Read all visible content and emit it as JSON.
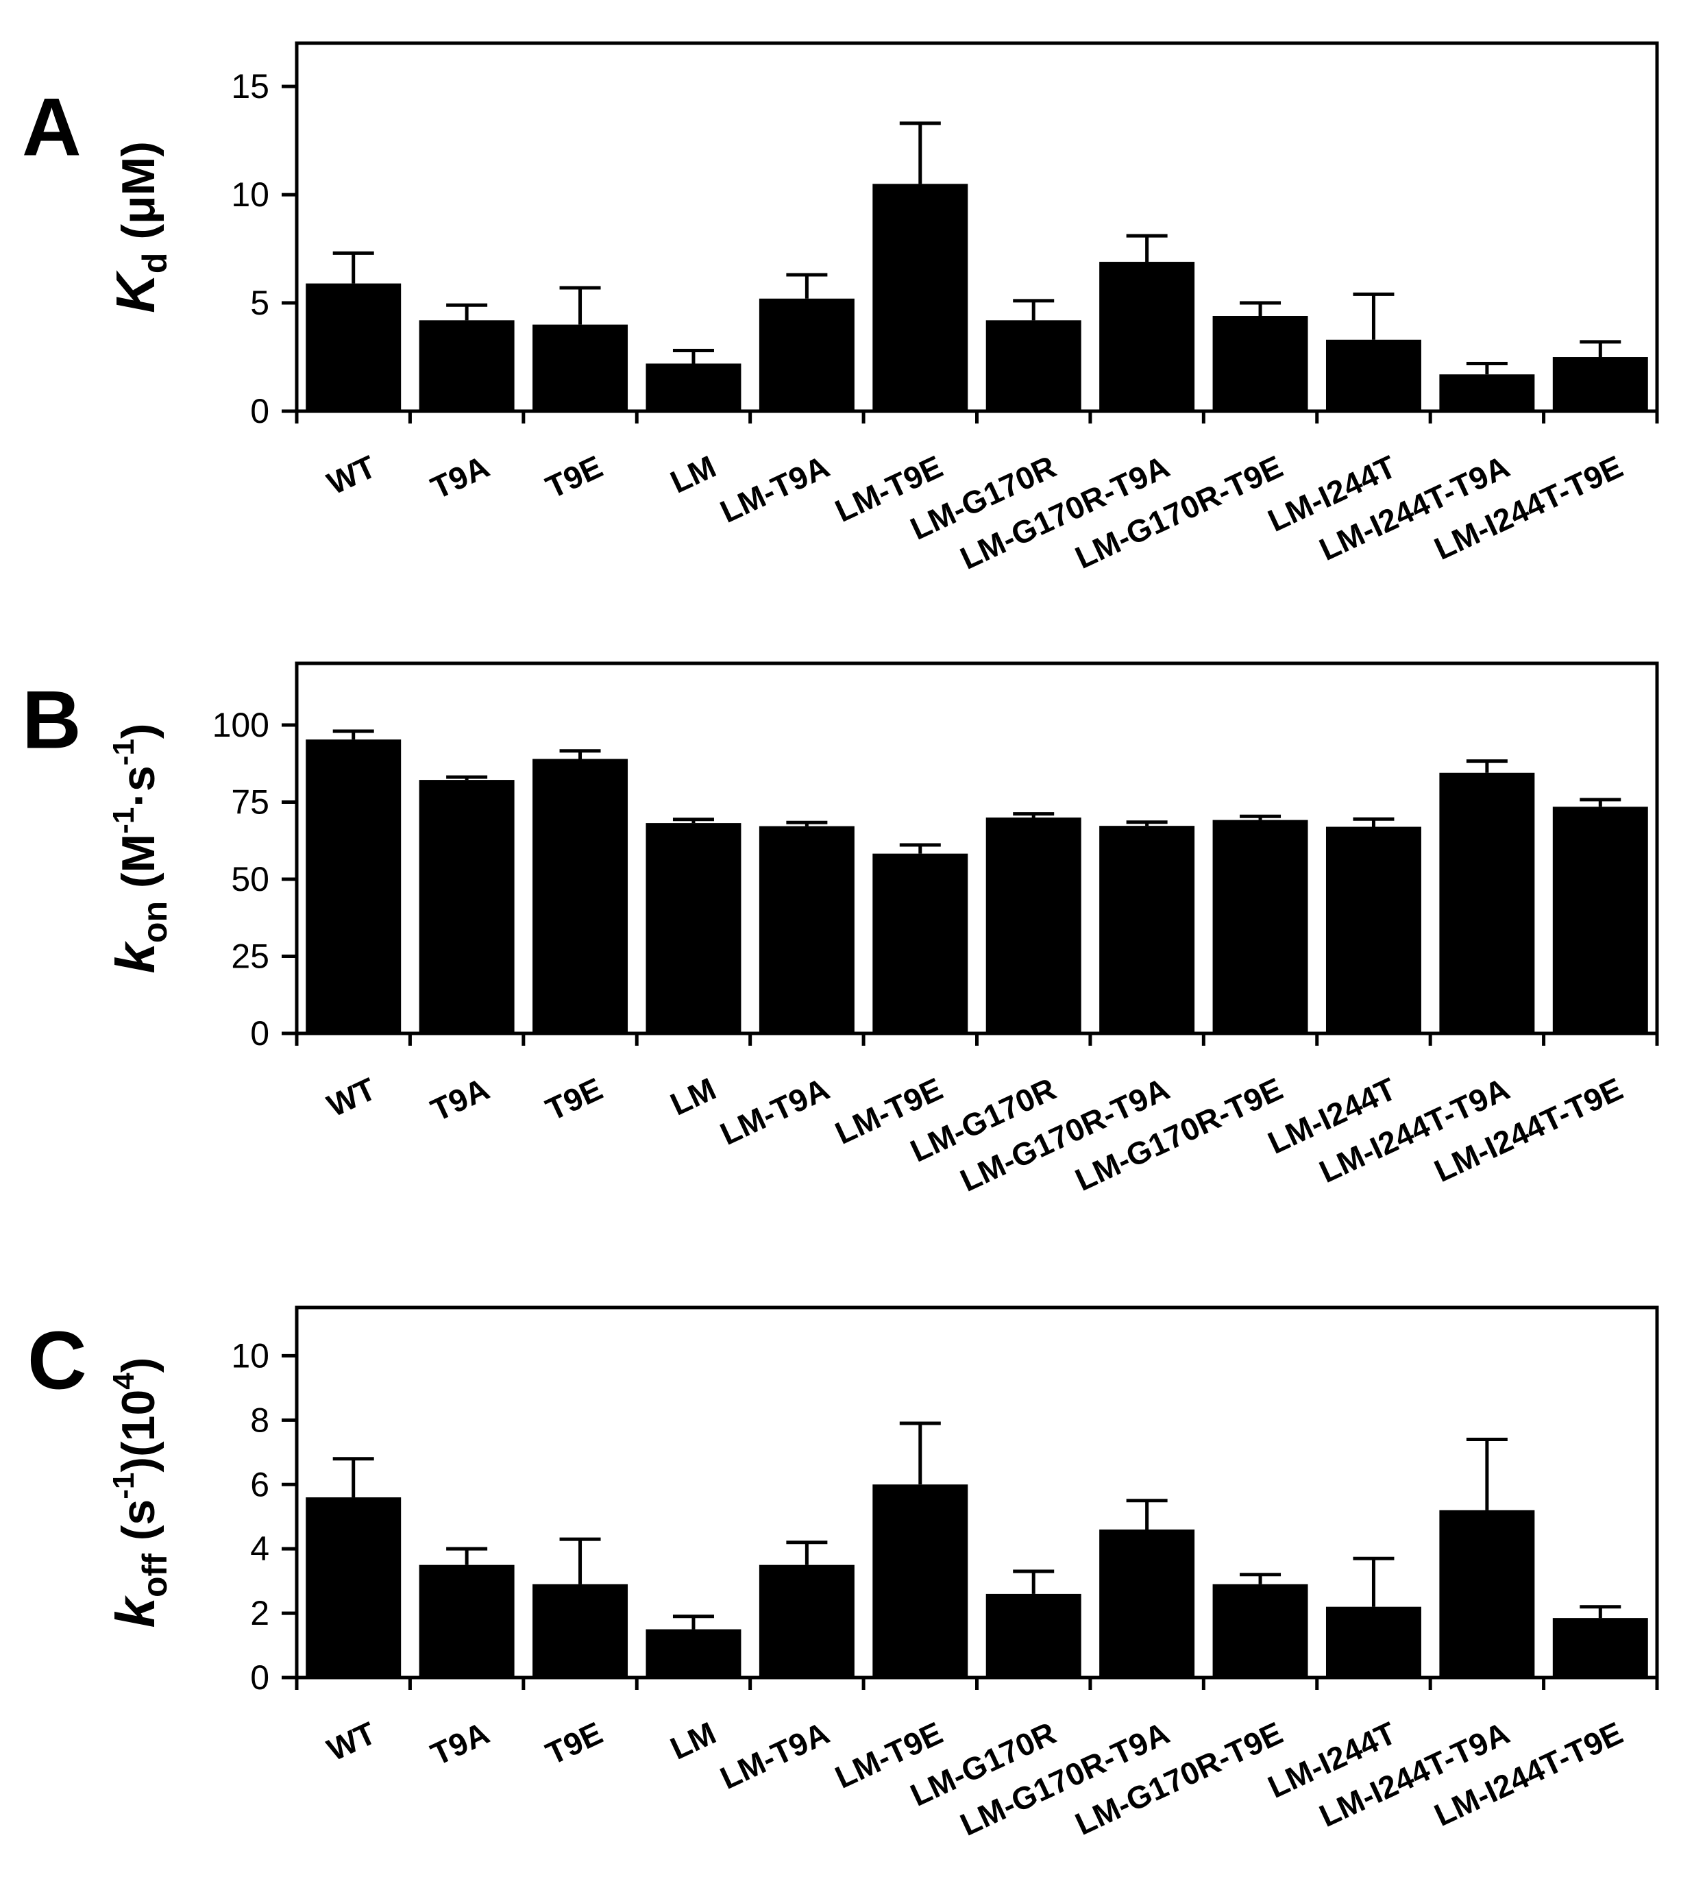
{
  "figure": {
    "colors": {
      "bar": "#000000",
      "axis": "#000000",
      "background": "#ffffff"
    }
  },
  "chart_data": [
    {
      "type": "bar",
      "panel_label": "A",
      "title": "",
      "ylabel": "K_d (μM)",
      "ylabel_parts": {
        "symbol": "K",
        "subscript": "d",
        "unit": " (μM)"
      },
      "xlabel": "",
      "ylim": [
        0,
        17
      ],
      "yticks": [
        0,
        5,
        10,
        15
      ],
      "categories": [
        "WT",
        "T9A",
        "T9E",
        "LM",
        "LM-T9A",
        "LM-T9E",
        "LM-G170R",
        "LM-G170R-T9A",
        "LM-G170R-T9E",
        "LM-I244T",
        "LM-I244T-T9A",
        "LM-I244T-T9E"
      ],
      "values": [
        5.9,
        4.2,
        4.0,
        2.2,
        5.2,
        10.5,
        4.2,
        6.9,
        4.4,
        3.3,
        1.7,
        2.5
      ],
      "errors": [
        1.4,
        0.7,
        1.7,
        0.6,
        1.1,
        2.8,
        0.9,
        1.2,
        0.6,
        2.1,
        0.5,
        0.7
      ],
      "grid": false
    },
    {
      "type": "bar",
      "panel_label": "B",
      "title": "",
      "ylabel": "k_on (M^-1·s^-1)",
      "ylabel_parts": {
        "symbol": "k",
        "subscript": "on",
        "open": " (M",
        "sup1": "-1",
        "mid": "·s",
        "sup2": "-1",
        "close": ")"
      },
      "xlabel": "",
      "ylim": [
        0,
        120
      ],
      "yticks": [
        0,
        25,
        50,
        75,
        100
      ],
      "categories": [
        "WT",
        "T9A",
        "T9E",
        "LM",
        "LM-T9A",
        "LM-T9E",
        "LM-G170R",
        "LM-G170R-T9A",
        "LM-G170R-T9E",
        "LM-I244T",
        "LM-I244T-T9A",
        "LM-I244T-T9E"
      ],
      "values": [
        95.3,
        82.2,
        89.0,
        68.2,
        67.2,
        58.3,
        70.0,
        67.3,
        69.2,
        67.0,
        84.5,
        73.5
      ],
      "errors": [
        2.7,
        0.9,
        2.6,
        1.2,
        1.2,
        2.8,
        1.2,
        1.2,
        1.2,
        2.5,
        3.8,
        2.3
      ],
      "grid": false
    },
    {
      "type": "bar",
      "panel_label": "C",
      "title": "",
      "ylabel": "k_off (s^-1)(10^4)",
      "ylabel_parts": {
        "symbol": "k",
        "subscript": "off",
        "open": " (s",
        "sup1": "-1",
        "mid": ")(10",
        "sup2": "4",
        "close": ")"
      },
      "xlabel": "",
      "ylim": [
        0,
        11.5
      ],
      "yticks": [
        0,
        2,
        4,
        6,
        8,
        10
      ],
      "categories": [
        "WT",
        "T9A",
        "T9E",
        "LM",
        "LM-T9A",
        "LM-T9E",
        "LM-G170R",
        "LM-G170R-T9A",
        "LM-G170R-T9E",
        "LM-I244T",
        "LM-I244T-T9A",
        "LM-I244T-T9E"
      ],
      "values": [
        5.6,
        3.5,
        2.9,
        1.5,
        3.5,
        6.0,
        2.6,
        4.6,
        2.9,
        2.2,
        5.2,
        1.85
      ],
      "errors": [
        1.2,
        0.5,
        1.4,
        0.4,
        0.7,
        1.9,
        0.7,
        0.9,
        0.3,
        1.5,
        2.2,
        0.35
      ],
      "grid": false
    }
  ]
}
